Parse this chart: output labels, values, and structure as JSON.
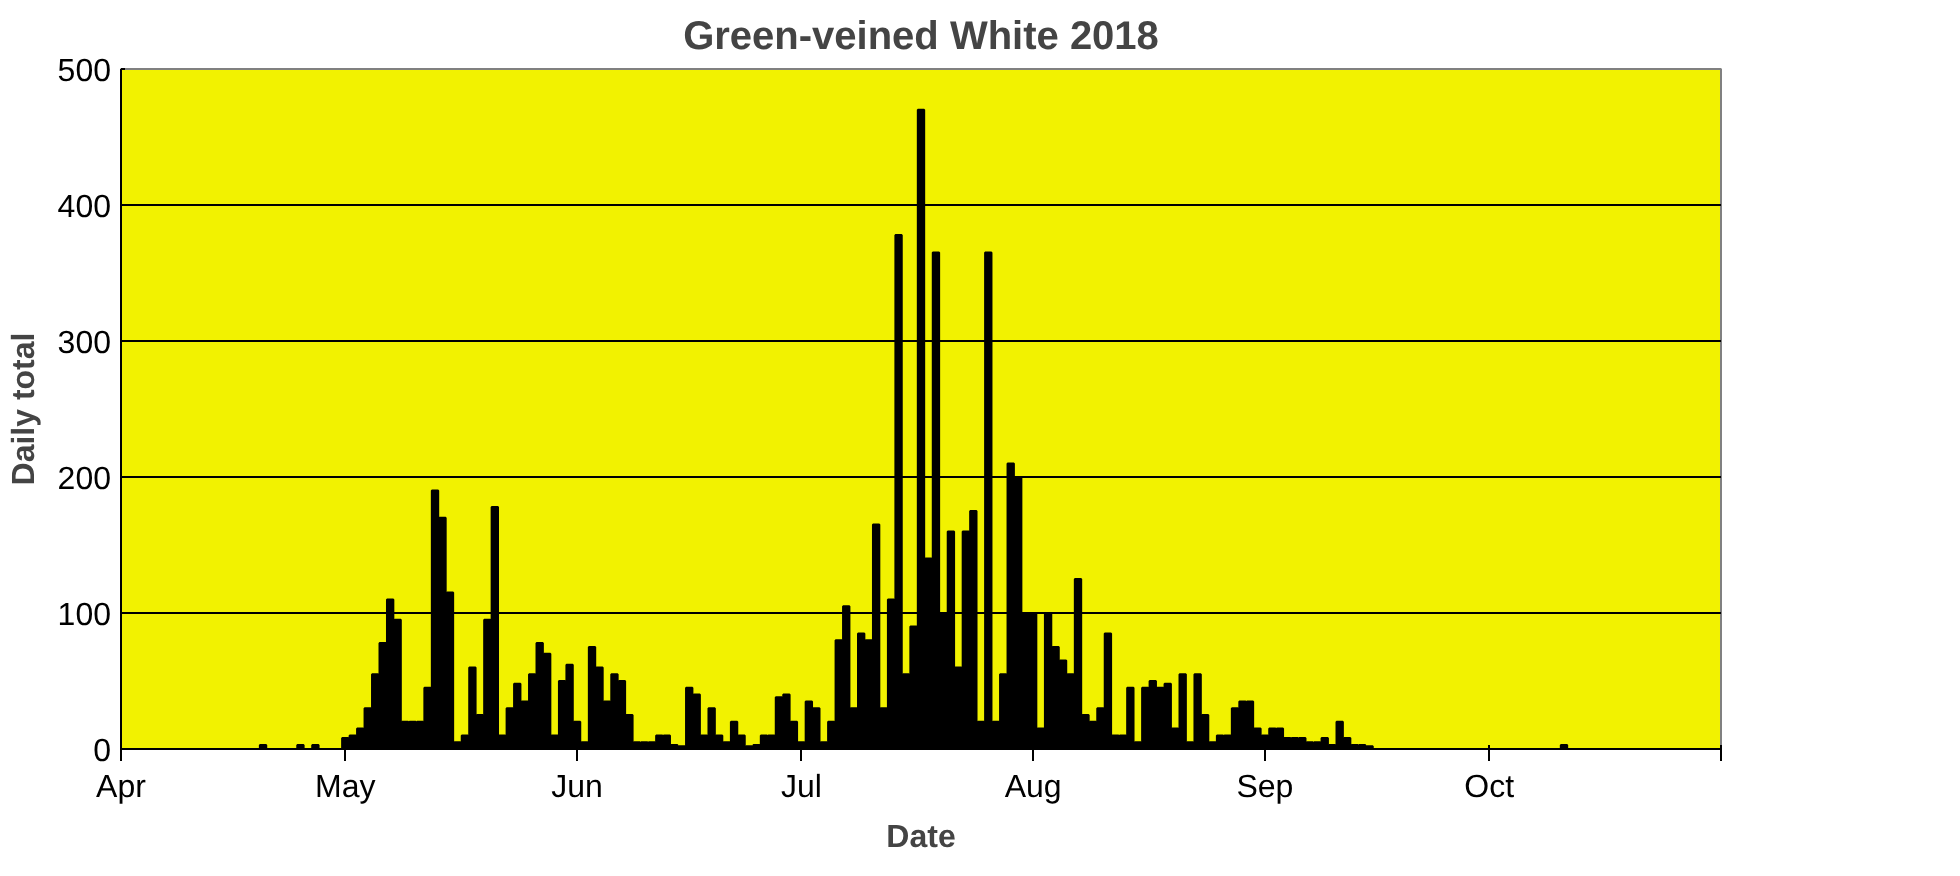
{
  "chart_data": {
    "type": "bar",
    "title": "Green-veined White 2018",
    "xlabel": "Date",
    "ylabel": "Daily total",
    "x": [
      "2018-04-20",
      "2018-04-25",
      "2018-04-27",
      "2018-05-01",
      "2018-05-02",
      "2018-05-03",
      "2018-05-04",
      "2018-05-05",
      "2018-05-06",
      "2018-05-07",
      "2018-05-08",
      "2018-05-09",
      "2018-05-10",
      "2018-05-11",
      "2018-05-12",
      "2018-05-13",
      "2018-05-14",
      "2018-05-15",
      "2018-05-16",
      "2018-05-17",
      "2018-05-18",
      "2018-05-19",
      "2018-05-20",
      "2018-05-21",
      "2018-05-22",
      "2018-05-23",
      "2018-05-24",
      "2018-05-25",
      "2018-05-26",
      "2018-05-27",
      "2018-05-28",
      "2018-05-29",
      "2018-05-30",
      "2018-05-31",
      "2018-06-01",
      "2018-06-02",
      "2018-06-03",
      "2018-06-04",
      "2018-06-05",
      "2018-06-06",
      "2018-06-07",
      "2018-06-08",
      "2018-06-09",
      "2018-06-10",
      "2018-06-11",
      "2018-06-12",
      "2018-06-13",
      "2018-06-14",
      "2018-06-15",
      "2018-06-16",
      "2018-06-17",
      "2018-06-18",
      "2018-06-19",
      "2018-06-20",
      "2018-06-21",
      "2018-06-22",
      "2018-06-23",
      "2018-06-24",
      "2018-06-25",
      "2018-06-26",
      "2018-06-27",
      "2018-06-28",
      "2018-06-29",
      "2018-06-30",
      "2018-07-01",
      "2018-07-02",
      "2018-07-03",
      "2018-07-04",
      "2018-07-05",
      "2018-07-06",
      "2018-07-07",
      "2018-07-08",
      "2018-07-09",
      "2018-07-10",
      "2018-07-11",
      "2018-07-12",
      "2018-07-13",
      "2018-07-14",
      "2018-07-15",
      "2018-07-16",
      "2018-07-17",
      "2018-07-18",
      "2018-07-19",
      "2018-07-20",
      "2018-07-21",
      "2018-07-22",
      "2018-07-23",
      "2018-07-24",
      "2018-07-25",
      "2018-07-26",
      "2018-07-27",
      "2018-07-28",
      "2018-07-29",
      "2018-07-30",
      "2018-07-31",
      "2018-08-01",
      "2018-08-02",
      "2018-08-03",
      "2018-08-04",
      "2018-08-05",
      "2018-08-06",
      "2018-08-07",
      "2018-08-08",
      "2018-08-09",
      "2018-08-10",
      "2018-08-11",
      "2018-08-12",
      "2018-08-13",
      "2018-08-14",
      "2018-08-15",
      "2018-08-16",
      "2018-08-17",
      "2018-08-18",
      "2018-08-19",
      "2018-08-20",
      "2018-08-21",
      "2018-08-22",
      "2018-08-23",
      "2018-08-24",
      "2018-08-25",
      "2018-08-26",
      "2018-08-27",
      "2018-08-28",
      "2018-08-29",
      "2018-08-30",
      "2018-08-31",
      "2018-09-01",
      "2018-09-02",
      "2018-09-03",
      "2018-09-04",
      "2018-09-05",
      "2018-09-06",
      "2018-09-07",
      "2018-09-08",
      "2018-09-09",
      "2018-09-10",
      "2018-09-11",
      "2018-09-12",
      "2018-09-13",
      "2018-09-14",
      "2018-09-15",
      "2018-10-11"
    ],
    "values": [
      3,
      3,
      3,
      8,
      10,
      15,
      30,
      55,
      78,
      110,
      95,
      20,
      20,
      20,
      45,
      190,
      170,
      115,
      5,
      10,
      60,
      25,
      95,
      178,
      10,
      30,
      48,
      35,
      55,
      78,
      70,
      10,
      50,
      62,
      20,
      5,
      75,
      60,
      35,
      55,
      50,
      25,
      5,
      5,
      5,
      10,
      10,
      3,
      2,
      45,
      40,
      10,
      30,
      10,
      5,
      20,
      10,
      2,
      3,
      10,
      10,
      38,
      40,
      20,
      5,
      35,
      30,
      5,
      20,
      80,
      105,
      30,
      85,
      80,
      165,
      30,
      110,
      378,
      55,
      90,
      470,
      140,
      365,
      100,
      160,
      60,
      160,
      175,
      20,
      365,
      20,
      55,
      210,
      200,
      100,
      100,
      15,
      100,
      75,
      65,
      55,
      125,
      25,
      20,
      30,
      85,
      10,
      10,
      45,
      5,
      45,
      50,
      45,
      48,
      15,
      55,
      5,
      55,
      25,
      5,
      10,
      10,
      30,
      35,
      35,
      15,
      10,
      15,
      15,
      8,
      8,
      8,
      5,
      5,
      8,
      3,
      20,
      8,
      3,
      3,
      2,
      3
    ],
    "color": "#000000",
    "xlim": [
      "2018-04-01",
      "2018-11-01"
    ],
    "xticks": [
      {
        "value": "2018-04-01",
        "label": "Apr"
      },
      {
        "value": "2018-05-01",
        "label": "May"
      },
      {
        "value": "2018-06-01",
        "label": "Jun"
      },
      {
        "value": "2018-07-01",
        "label": "Jul"
      },
      {
        "value": "2018-08-01",
        "label": "Aug"
      },
      {
        "value": "2018-09-01",
        "label": "Sep"
      },
      {
        "value": "2018-10-01",
        "label": "Oct"
      },
      {
        "value": "2018-11-01",
        "label": null
      }
    ],
    "ylim": [
      0,
      500
    ],
    "yticks": [
      0,
      100,
      200,
      300,
      400,
      500
    ],
    "grid": "y"
  }
}
